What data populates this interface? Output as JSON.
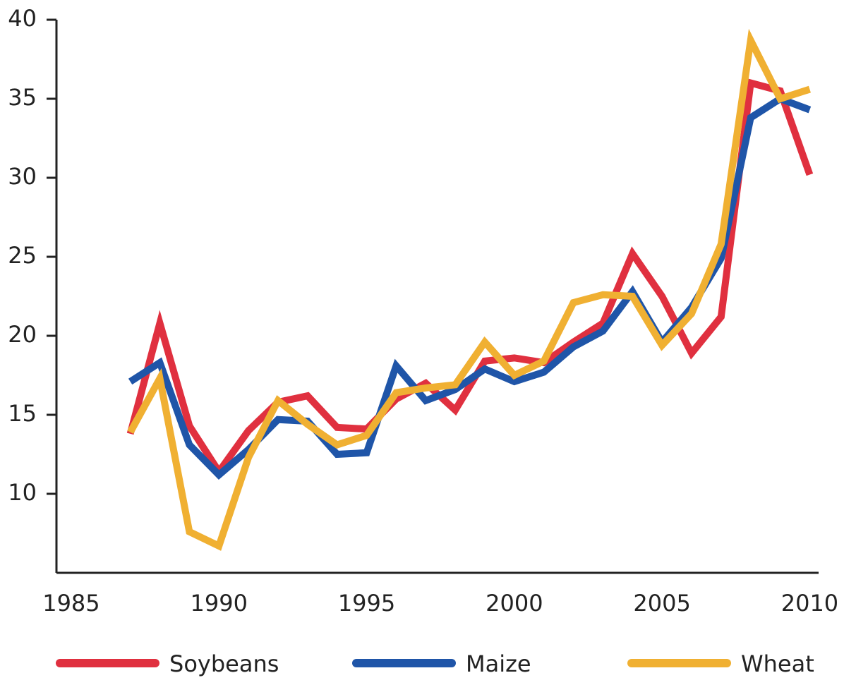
{
  "chart_data": {
    "type": "line",
    "x": [
      1987,
      1988,
      1989,
      1990,
      1991,
      1992,
      1993,
      1994,
      1995,
      1996,
      1997,
      1998,
      1999,
      2000,
      2001,
      2002,
      2003,
      2004,
      2005,
      2006,
      2007,
      2008,
      2009,
      2010
    ],
    "series": [
      {
        "name": "Soybeans",
        "color": "#e0303f",
        "values": [
          13.8,
          20.8,
          14.3,
          11.4,
          14.0,
          15.8,
          16.2,
          14.2,
          14.1,
          16.0,
          17.0,
          15.3,
          18.4,
          18.6,
          18.3,
          19.6,
          20.8,
          25.2,
          22.5,
          18.9,
          21.2,
          36.0,
          35.5,
          30.2
        ]
      },
      {
        "name": "Maize",
        "color": "#1f55a8",
        "values": [
          17.1,
          18.3,
          13.1,
          11.2,
          12.8,
          14.7,
          14.6,
          12.5,
          12.6,
          18.1,
          15.9,
          16.6,
          17.9,
          17.1,
          17.7,
          19.3,
          20.3,
          22.8,
          19.6,
          21.8,
          24.9,
          33.8,
          35.0,
          34.3
        ]
      },
      {
        "name": "Wheat",
        "color": "#f0b032",
        "values": [
          13.9,
          17.3,
          7.6,
          6.7,
          12.3,
          15.9,
          14.4,
          13.1,
          13.7,
          16.4,
          16.7,
          16.9,
          19.6,
          17.5,
          18.4,
          22.1,
          22.6,
          22.5,
          19.4,
          21.4,
          25.8,
          38.7,
          35.0,
          35.6
        ]
      }
    ],
    "xlim": [
      1984.5,
      2010.3
    ],
    "xticks": [
      1985,
      1990,
      1995,
      2000,
      2005,
      2010
    ],
    "ylim": [
      5,
      40
    ],
    "yticks": [
      10,
      15,
      20,
      25,
      30,
      35,
      40
    ]
  }
}
